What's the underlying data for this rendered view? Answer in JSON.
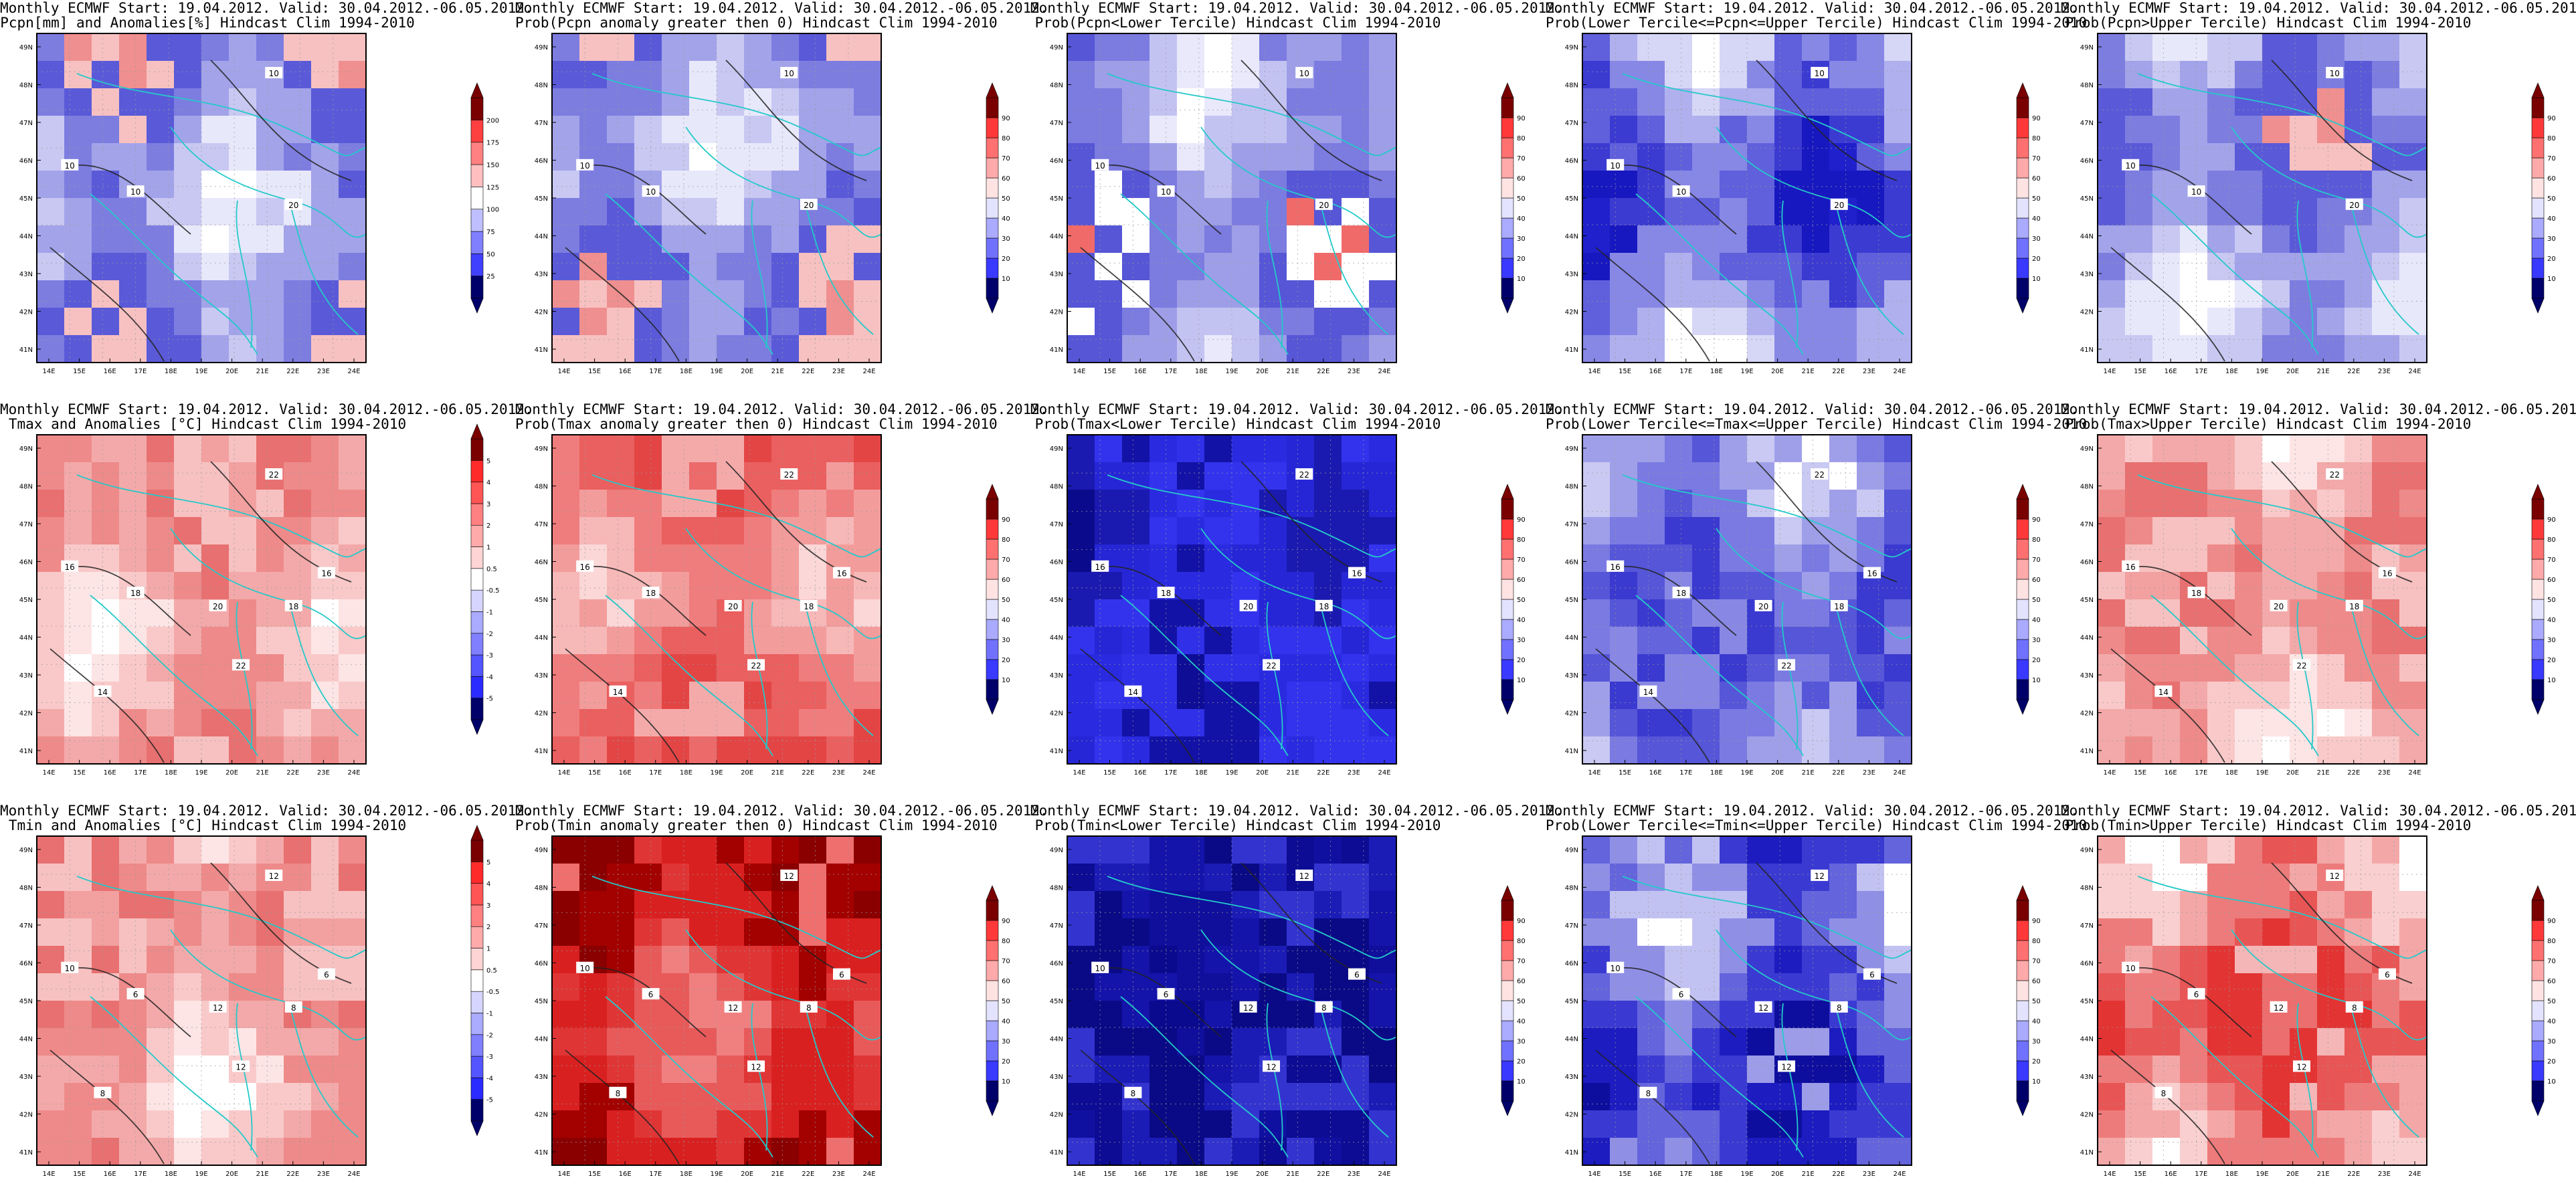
{
  "panels": [
    {
      "title1": "Monthly ECMWF Start: 19.04.2012. Valid: 30.04.2012.-06.05.2012.",
      "title2": "Pcpn[mm] and Anomalies[%] Hindcast Clim 1994-2010",
      "scale": "precip_anom",
      "palette": "pcpn",
      "contour_labels": [
        "10",
        "20",
        "10",
        "10"
      ],
      "colorbar": [
        "25",
        "50",
        "75",
        "100",
        "125",
        "150",
        "175",
        "200"
      ]
    },
    {
      "title1": "Monthly ECMWF Start: 19.04.2012. Valid: 30.04.2012.-06.05.2012.",
      "title2": "Prob(Pcpn anomaly greater then 0) Hindcast Clim 1994-2010",
      "scale": "prob",
      "palette": "pcpn",
      "contour_labels": [
        "10",
        "20",
        "10",
        "10"
      ],
      "colorbar": [
        "10",
        "20",
        "30",
        "40",
        "50",
        "60",
        "70",
        "80",
        "90"
      ]
    },
    {
      "title1": "Monthly ECMWF Start: 19.04.2012. Valid: 30.04.2012.-06.05.2012.",
      "title2": "Prob(Pcpn<Lower Tercile) Hindcast Clim 1994-2010",
      "scale": "prob",
      "palette": "pcpnlow",
      "contour_labels": [
        "10",
        "20",
        "10",
        "10"
      ],
      "colorbar": [
        "10",
        "20",
        "30",
        "40",
        "50",
        "60",
        "70",
        "80",
        "90"
      ]
    },
    {
      "title1": "Monthly ECMWF Start: 19.04.2012. Valid: 30.04.2012.-06.05.2012.",
      "title2": "Prob(Lower Tercile<=Pcpn<=Upper Tercile) Hindcast Clim 1994-2010",
      "scale": "prob",
      "palette": "pcpnmid",
      "contour_labels": [
        "10",
        "20",
        "10",
        "10"
      ],
      "colorbar": [
        "10",
        "20",
        "30",
        "40",
        "50",
        "60",
        "70",
        "80",
        "90"
      ]
    },
    {
      "title1": "Monthly ECMWF Start: 19.04.2012. Valid: 30.04.2012.-06.05.2012.",
      "title2": "Prob(Pcpn>Upper Tercile) Hindcast Clim 1994-2010",
      "scale": "prob",
      "palette": "pcpn",
      "contour_labels": [
        "10",
        "20",
        "10",
        "10"
      ],
      "colorbar": [
        "10",
        "20",
        "30",
        "40",
        "50",
        "60",
        "70",
        "80",
        "90"
      ]
    },
    {
      "title1": "Monthly ECMWF Start: 19.04.2012. Valid: 30.04.2012.-06.05.2012.",
      "title2": "Tmax and Anomalies [°C] Hindcast Clim 1994-2010",
      "scale": "temp_anom",
      "palette": "warm",
      "contour_labels": [
        "22",
        "18",
        "16",
        "18",
        "20",
        "22",
        "16",
        "14"
      ],
      "colorbar": [
        "-5",
        "-4",
        "-3",
        "-2",
        "-1",
        "-0.5",
        "0.5",
        "1",
        "2",
        "3",
        "4",
        "5"
      ]
    },
    {
      "title1": "Monthly ECMWF Start: 19.04.2012. Valid: 30.04.2012.-06.05.2012.",
      "title2": "Prob(Tmax anomaly greater then 0) Hindcast Clim 1994-2010",
      "scale": "prob",
      "palette": "warmstrong",
      "contour_labels": [
        "22",
        "18",
        "16",
        "18",
        "20",
        "22",
        "16",
        "14"
      ],
      "colorbar": [
        "10",
        "20",
        "30",
        "40",
        "50",
        "60",
        "70",
        "80",
        "90"
      ]
    },
    {
      "title1": "Monthly ECMWF Start: 19.04.2012. Valid: 30.04.2012.-06.05.2012.",
      "title2": "Prob(Tmax<Lower Tercile) Hindcast Clim 1994-2010",
      "scale": "prob",
      "palette": "blue",
      "contour_labels": [
        "22",
        "18",
        "16",
        "18",
        "20",
        "22",
        "16",
        "14"
      ],
      "colorbar": [
        "10",
        "20",
        "30",
        "40",
        "50",
        "60",
        "70",
        "80",
        "90"
      ]
    },
    {
      "title1": "Monthly ECMWF Start: 19.04.2012. Valid: 30.04.2012.-06.05.2012.",
      "title2": "Prob(Lower Tercile<=Tmax<=Upper Tercile) Hindcast Clim 1994-2010",
      "scale": "prob",
      "palette": "bluemid",
      "contour_labels": [
        "22",
        "18",
        "16",
        "18",
        "20",
        "22",
        "16",
        "14"
      ],
      "colorbar": [
        "10",
        "20",
        "30",
        "40",
        "50",
        "60",
        "70",
        "80",
        "90"
      ]
    },
    {
      "title1": "Monthly ECMWF Start: 19.04.2012. Valid: 30.04.2012.-06.05.2012.",
      "title2": "Prob(Tmax>Upper Tercile) Hindcast Clim 1994-2010",
      "scale": "prob",
      "palette": "warm",
      "contour_labels": [
        "22",
        "18",
        "16",
        "18",
        "20",
        "22",
        "16",
        "14"
      ],
      "colorbar": [
        "10",
        "20",
        "30",
        "40",
        "50",
        "60",
        "70",
        "80",
        "90"
      ]
    },
    {
      "title1": "Monthly ECMWF Start: 19.04.2012. Valid: 30.04.2012.-06.05.2012.",
      "title2": "Tmin and Anomalies [°C] Hindcast Clim 1994-2010",
      "scale": "temp_anom",
      "palette": "warm",
      "contour_labels": [
        "12",
        "8",
        "10",
        "6",
        "12",
        "12",
        "6",
        "8"
      ],
      "colorbar": [
        "-5",
        "-4",
        "-3",
        "-2",
        "-1",
        "-0.5",
        "0.5",
        "1",
        "2",
        "3",
        "4",
        "5"
      ]
    },
    {
      "title1": "Monthly ECMWF Start: 19.04.2012. Valid: 30.04.2012.-06.05.2012.",
      "title2": "Prob(Tmin anomaly greater then 0) Hindcast Clim 1994-2010",
      "scale": "prob",
      "palette": "hot",
      "contour_labels": [
        "12",
        "8",
        "10",
        "6",
        "12",
        "12",
        "6",
        "8"
      ],
      "colorbar": [
        "10",
        "20",
        "30",
        "40",
        "50",
        "60",
        "70",
        "80",
        "90"
      ]
    },
    {
      "title1": "Monthly ECMWF Start: 19.04.2012. Valid: 30.04.2012.-06.05.2012.",
      "title2": "Prob(Tmin<Lower Tercile) Hindcast Clim 1994-2010",
      "scale": "prob",
      "palette": "deepblue",
      "contour_labels": [
        "12",
        "8",
        "10",
        "6",
        "12",
        "12",
        "6",
        "8"
      ],
      "colorbar": [
        "10",
        "20",
        "30",
        "40",
        "50",
        "60",
        "70",
        "80",
        "90"
      ]
    },
    {
      "title1": "Monthly ECMWF Start: 19.04.2012. Valid: 30.04.2012.-06.05.2012.",
      "title2": "Prob(Lower Tercile<=Tmin<=Upper Tercile) Hindcast Clim 1994-2010",
      "scale": "prob",
      "palette": "bluemix",
      "contour_labels": [
        "12",
        "8",
        "10",
        "6",
        "12",
        "12",
        "6",
        "8"
      ],
      "colorbar": [
        "10",
        "20",
        "30",
        "40",
        "50",
        "60",
        "70",
        "80",
        "90"
      ]
    },
    {
      "title1": "Monthly ECMWF Start: 19.04.2012. Valid: 30.04.2012.-06.05.2012.",
      "title2": "Prob(Tmin>Upper Tercile) Hindcast Clim 1994-2010",
      "scale": "prob",
      "palette": "hot2",
      "contour_labels": [
        "12",
        "8",
        "10",
        "6",
        "12",
        "12",
        "6",
        "8"
      ],
      "colorbar": [
        "10",
        "20",
        "30",
        "40",
        "50",
        "60",
        "70",
        "80",
        "90"
      ]
    }
  ],
  "lat_ticks": [
    "49N",
    "48N",
    "47N",
    "46N",
    "45N",
    "44N",
    "43N",
    "42N",
    "41N"
  ],
  "lon_ticks": [
    "14E",
    "15E",
    "16E",
    "17E",
    "18E",
    "19E",
    "20E",
    "21E",
    "22E",
    "23E",
    "24E"
  ],
  "colors": {
    "frame": "#000000",
    "border_line": "#25c9c9",
    "contour": "#222222",
    "bar_red_top": "#7a0000",
    "bar_blue_bottom": "#00006b"
  }
}
